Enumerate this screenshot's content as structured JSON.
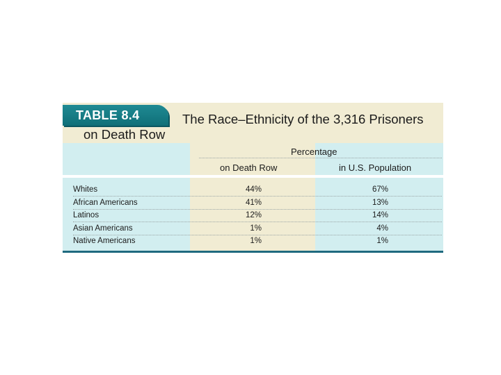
{
  "table": {
    "tab_label": "TABLE 8.4",
    "title_line1": "The Race–Ethnicity of the 3,316 Prisoners",
    "title_line2": "on Death Row",
    "group_header": "Percentage",
    "col_death_row": "on Death Row",
    "col_population": "in U.S. Population",
    "rows": [
      {
        "group": "Whites",
        "death_row": "44%",
        "population": "67%"
      },
      {
        "group": "African Americans",
        "death_row": "41%",
        "population": "13%"
      },
      {
        "group": "Latinos",
        "death_row": "12%",
        "population": "14%"
      },
      {
        "group": "Asian Americans",
        "death_row": "1%",
        "population": "4%"
      },
      {
        "group": "Native Americans",
        "death_row": "1%",
        "population": "1%"
      }
    ]
  },
  "colors": {
    "teal_tab": "#1f8a93",
    "light_teal": "#d2eef0",
    "cream": "#f1ecd3",
    "rule": "#1f6a7f"
  }
}
